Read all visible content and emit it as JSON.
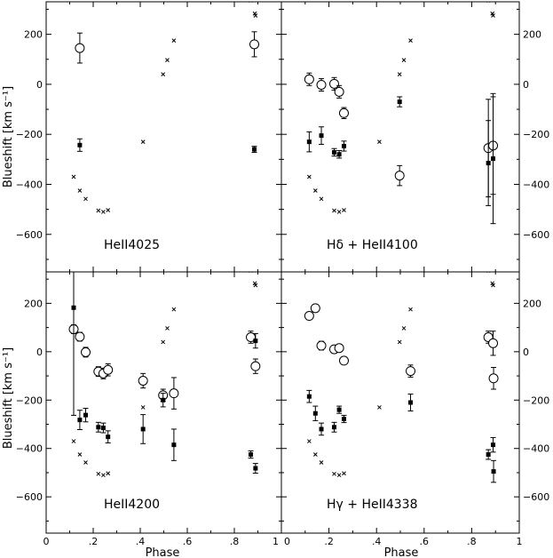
{
  "chart_data": [
    {
      "type": "scatter",
      "panel_label": "HeII4025",
      "ylabel": "Blueshift [km s⁻¹]",
      "xlabel": "",
      "xlim": [
        0,
        1
      ],
      "ylim": [
        -750,
        330
      ],
      "series": [
        {
          "marker": "open-circle",
          "points": [
            {
              "x": 0.143,
              "y": 145,
              "err": 60
            },
            {
              "x": 0.885,
              "y": 160,
              "err": 50
            }
          ]
        },
        {
          "marker": "filled-square",
          "points": [
            {
              "x": 0.143,
              "y": -243,
              "err": 25
            },
            {
              "x": 0.885,
              "y": -260,
              "err": 12
            }
          ]
        },
        {
          "marker": "cross",
          "points": [
            {
              "x": 0.117,
              "y": -370
            },
            {
              "x": 0.143,
              "y": -425
            },
            {
              "x": 0.168,
              "y": -458
            },
            {
              "x": 0.222,
              "y": -505
            },
            {
              "x": 0.243,
              "y": -510
            },
            {
              "x": 0.263,
              "y": -503
            },
            {
              "x": 0.412,
              "y": -230
            },
            {
              "x": 0.497,
              "y": 40
            },
            {
              "x": 0.515,
              "y": 97
            },
            {
              "x": 0.543,
              "y": 175
            },
            {
              "x": 0.87,
              "y": 335
            },
            {
              "x": 0.887,
              "y": 283
            },
            {
              "x": 0.89,
              "y": 275
            }
          ]
        }
      ]
    },
    {
      "type": "scatter",
      "panel_label": "Hδ  +  HeII4100",
      "ylabel": "",
      "xlabel": "",
      "xlim": [
        0,
        1
      ],
      "ylim": [
        -750,
        330
      ],
      "series": [
        {
          "marker": "open-circle",
          "points": [
            {
              "x": 0.117,
              "y": 20,
              "err": 25
            },
            {
              "x": 0.168,
              "y": -2,
              "err": 25
            },
            {
              "x": 0.222,
              "y": 2,
              "err": 25
            },
            {
              "x": 0.243,
              "y": -30,
              "err": 25
            },
            {
              "x": 0.263,
              "y": -115,
              "err": 22
            },
            {
              "x": 0.497,
              "y": -365,
              "err": 40
            },
            {
              "x": 0.87,
              "y": -255,
              "err": 195
            },
            {
              "x": 0.89,
              "y": -245,
              "err": 195
            }
          ]
        },
        {
          "marker": "filled-square",
          "points": [
            {
              "x": 0.117,
              "y": -230,
              "err": 40
            },
            {
              "x": 0.168,
              "y": -205,
              "err": 35
            },
            {
              "x": 0.222,
              "y": -272,
              "err": 15
            },
            {
              "x": 0.243,
              "y": -280,
              "err": 15
            },
            {
              "x": 0.263,
              "y": -247,
              "err": 20
            },
            {
              "x": 0.497,
              "y": -70,
              "err": 20
            },
            {
              "x": 0.87,
              "y": -315,
              "err": 170
            },
            {
              "x": 0.89,
              "y": -297,
              "err": 260
            }
          ]
        },
        {
          "marker": "cross",
          "points": [
            {
              "x": 0.117,
              "y": -370
            },
            {
              "x": 0.143,
              "y": -425
            },
            {
              "x": 0.168,
              "y": -458
            },
            {
              "x": 0.222,
              "y": -505
            },
            {
              "x": 0.243,
              "y": -510
            },
            {
              "x": 0.263,
              "y": -503
            },
            {
              "x": 0.412,
              "y": -230
            },
            {
              "x": 0.497,
              "y": 40
            },
            {
              "x": 0.515,
              "y": 97
            },
            {
              "x": 0.543,
              "y": 175
            },
            {
              "x": 0.87,
              "y": 335
            },
            {
              "x": 0.887,
              "y": 283
            },
            {
              "x": 0.89,
              "y": 275
            }
          ]
        }
      ]
    },
    {
      "type": "scatter",
      "panel_label": "HeII4200",
      "ylabel": "Blueshift [km s⁻¹]",
      "xlabel": "Phase",
      "xlim": [
        0,
        1
      ],
      "ylim": [
        -750,
        330
      ],
      "series": [
        {
          "marker": "open-circle",
          "points": [
            {
              "x": 0.117,
              "y": 93,
              "err": 18
            },
            {
              "x": 0.143,
              "y": 62,
              "err": 18
            },
            {
              "x": 0.168,
              "y": -2,
              "err": 20
            },
            {
              "x": 0.222,
              "y": -82,
              "err": 20
            },
            {
              "x": 0.243,
              "y": -90,
              "err": 22
            },
            {
              "x": 0.263,
              "y": -75,
              "err": 25
            },
            {
              "x": 0.412,
              "y": -120,
              "err": 30
            },
            {
              "x": 0.497,
              "y": -180,
              "err": 25
            },
            {
              "x": 0.543,
              "y": -172,
              "err": 65
            },
            {
              "x": 0.87,
              "y": 60,
              "err": 25
            },
            {
              "x": 0.89,
              "y": -60,
              "err": 30
            }
          ]
        },
        {
          "marker": "filled-square",
          "points": [
            {
              "x": 0.117,
              "y": 182,
              "err": 445
            },
            {
              "x": 0.143,
              "y": -282,
              "err": 40
            },
            {
              "x": 0.168,
              "y": -262,
              "err": 28
            },
            {
              "x": 0.222,
              "y": -312,
              "err": 20
            },
            {
              "x": 0.243,
              "y": -315,
              "err": 20
            },
            {
              "x": 0.263,
              "y": -352,
              "err": 25
            },
            {
              "x": 0.412,
              "y": -320,
              "err": 60
            },
            {
              "x": 0.497,
              "y": -200,
              "err": 28
            },
            {
              "x": 0.543,
              "y": -385,
              "err": 65
            },
            {
              "x": 0.87,
              "y": -425,
              "err": 15
            },
            {
              "x": 0.89,
              "y": 45,
              "err": 30
            }
          ]
        },
        {
          "marker": "filled-square-extra",
          "points": [
            {
              "x": 0.89,
              "y": -482,
              "err": 20
            }
          ]
        },
        {
          "marker": "cross",
          "points": [
            {
              "x": 0.117,
              "y": -370
            },
            {
              "x": 0.143,
              "y": -425
            },
            {
              "x": 0.168,
              "y": -458
            },
            {
              "x": 0.222,
              "y": -505
            },
            {
              "x": 0.243,
              "y": -510
            },
            {
              "x": 0.263,
              "y": -503
            },
            {
              "x": 0.412,
              "y": -230
            },
            {
              "x": 0.497,
              "y": 40
            },
            {
              "x": 0.515,
              "y": 97
            },
            {
              "x": 0.543,
              "y": 175
            },
            {
              "x": 0.87,
              "y": 335
            },
            {
              "x": 0.887,
              "y": 283
            },
            {
              "x": 0.89,
              "y": 275
            }
          ]
        }
      ]
    },
    {
      "type": "scatter",
      "panel_label": "Hγ  +  HeII4338",
      "ylabel": "",
      "xlabel": "Phase",
      "xlim": [
        0,
        1
      ],
      "ylim": [
        -750,
        330
      ],
      "series": [
        {
          "marker": "open-circle",
          "points": [
            {
              "x": 0.117,
              "y": 148,
              "err": 15
            },
            {
              "x": 0.143,
              "y": 180,
              "err": 15
            },
            {
              "x": 0.168,
              "y": 25,
              "err": 18
            },
            {
              "x": 0.222,
              "y": 10,
              "err": 15
            },
            {
              "x": 0.243,
              "y": 15,
              "err": 15
            },
            {
              "x": 0.263,
              "y": -37,
              "err": 15
            },
            {
              "x": 0.543,
              "y": -80,
              "err": 25
            },
            {
              "x": 0.87,
              "y": 60,
              "err": 25
            },
            {
              "x": 0.89,
              "y": 35,
              "err": 50
            },
            {
              "x": 0.892,
              "y": -110,
              "err": 45
            }
          ]
        },
        {
          "marker": "filled-square",
          "points": [
            {
              "x": 0.117,
              "y": -185,
              "err": 25
            },
            {
              "x": 0.143,
              "y": -255,
              "err": 30
            },
            {
              "x": 0.168,
              "y": -320,
              "err": 25
            },
            {
              "x": 0.222,
              "y": -312,
              "err": 20
            },
            {
              "x": 0.243,
              "y": -240,
              "err": 15
            },
            {
              "x": 0.263,
              "y": -278,
              "err": 15
            },
            {
              "x": 0.543,
              "y": -210,
              "err": 35
            },
            {
              "x": 0.87,
              "y": -425,
              "err": 20
            },
            {
              "x": 0.89,
              "y": -385,
              "err": 30
            },
            {
              "x": 0.892,
              "y": -495,
              "err": 45
            }
          ]
        },
        {
          "marker": "cross",
          "points": [
            {
              "x": 0.117,
              "y": -370
            },
            {
              "x": 0.143,
              "y": -425
            },
            {
              "x": 0.168,
              "y": -458
            },
            {
              "x": 0.222,
              "y": -505
            },
            {
              "x": 0.243,
              "y": -510
            },
            {
              "x": 0.263,
              "y": -503
            },
            {
              "x": 0.412,
              "y": -230
            },
            {
              "x": 0.497,
              "y": 40
            },
            {
              "x": 0.515,
              "y": 97
            },
            {
              "x": 0.543,
              "y": 175
            },
            {
              "x": 0.87,
              "y": 335
            },
            {
              "x": 0.887,
              "y": 283
            },
            {
              "x": 0.89,
              "y": 275
            }
          ]
        }
      ]
    }
  ],
  "axes": {
    "x_ticks": [
      0,
      0.2,
      0.4,
      0.6,
      0.8,
      1
    ],
    "x_tick_labels": [
      "0",
      ".2",
      ".4",
      ".6",
      ".8",
      "1"
    ],
    "y_ticks": [
      200,
      0,
      -200,
      -400,
      -600
    ],
    "y_tick_labels": [
      "200",
      "0",
      "−200",
      "−400",
      "−600"
    ]
  }
}
